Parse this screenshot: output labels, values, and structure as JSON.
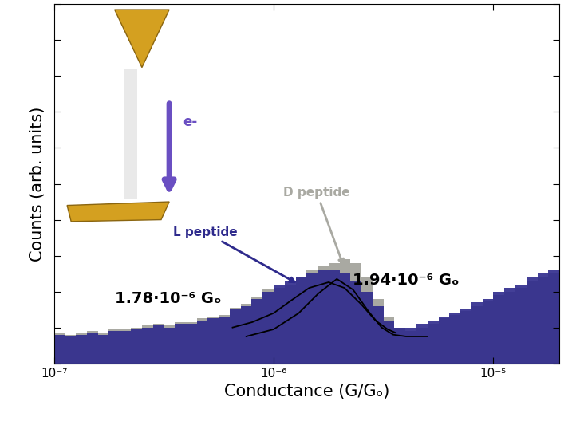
{
  "chart_data": {
    "type": "histogram",
    "x_label": "Conductance (G/Gₒ)",
    "y_label": "Counts (arb. units)",
    "log": "x",
    "xlim": [
      1e-07,
      2e-05
    ],
    "xticks": [
      {
        "value": 1e-07,
        "label": "10⁻⁷"
      },
      {
        "value": 1e-06,
        "label": "10⁻⁶"
      },
      {
        "value": 1e-05,
        "label": "10⁻⁵"
      }
    ],
    "ylim": [
      0,
      100
    ],
    "yticks": [
      0,
      10,
      20,
      30,
      40,
      50,
      60,
      70,
      80,
      90,
      100
    ],
    "tick_labels": "x",
    "bins": [
      1e-07,
      1.122e-07,
      1.259e-07,
      1.413e-07,
      1.585e-07,
      1.778e-07,
      1.995e-07,
      2.239e-07,
      2.512e-07,
      2.818e-07,
      3.162e-07,
      3.548e-07,
      3.981e-07,
      4.467e-07,
      5.012e-07,
      5.623e-07,
      6.31e-07,
      7.079e-07,
      7.943e-07,
      8.913e-07,
      1e-06,
      1.122e-06,
      1.259e-06,
      1.413e-06,
      1.585e-06,
      1.778e-06,
      1.995e-06,
      2.239e-06,
      2.512e-06,
      2.818e-06,
      3.162e-06,
      3.548e-06,
      3.981e-06,
      4.467e-06,
      5.012e-06,
      5.623e-06,
      6.31e-06,
      7.079e-06,
      7.943e-06,
      8.913e-06,
      1e-05,
      1.122e-05,
      1.259e-05,
      1.413e-05,
      1.585e-05,
      1.778e-05,
      1.995e-05
    ],
    "series": [
      {
        "name": "D peptide",
        "color": "#a9a9a2",
        "values": [
          8.5,
          8,
          8.5,
          9,
          8.5,
          9.5,
          9.5,
          10,
          10.5,
          11,
          10.5,
          11.5,
          11.5,
          12.5,
          13,
          13.5,
          15.5,
          16.5,
          18.5,
          20.5,
          21,
          22,
          24,
          26,
          27,
          28,
          29,
          28,
          24,
          18,
          13,
          10,
          9,
          10,
          11,
          12.5,
          13.5,
          14.5,
          16,
          17.5,
          19,
          20,
          21,
          23,
          24,
          25
        ]
      },
      {
        "name": "L peptide",
        "color": "#2e2a8c",
        "values": [
          8,
          7.5,
          8,
          8.5,
          8,
          9,
          9,
          9.5,
          10,
          10.5,
          10,
          11,
          11,
          12,
          12.5,
          13,
          15,
          16,
          18,
          20,
          22,
          23,
          24,
          25,
          26,
          26,
          25,
          23,
          20,
          16,
          12,
          10,
          10,
          11,
          12,
          13,
          14,
          15,
          17,
          18,
          20,
          21,
          22,
          24,
          25,
          26
        ]
      }
    ],
    "fits": [
      {
        "label": "1.78·10⁻⁶ Gₒ",
        "color": "#000000",
        "x": [
          6.5e-07,
          8e-07,
          1e-06,
          1.2e-06,
          1.45e-06,
          1.78e-06,
          2.1e-06,
          2.5e-06,
          2.9e-06,
          3.3e-06,
          3.6e-06
        ],
        "values": [
          10,
          11.5,
          14,
          17.5,
          21,
          22.6,
          21,
          16.5,
          12,
          9.5,
          8.5
        ]
      },
      {
        "label": "1.94·10⁻⁶ Gₒ",
        "color": "#000000",
        "x": [
          7.5e-07,
          1e-06,
          1.3e-06,
          1.6e-06,
          1.94e-06,
          2.3e-06,
          2.7e-06,
          3.1e-06,
          3.5e-06,
          4e-06,
          5e-06
        ],
        "values": [
          7.5,
          9.5,
          14,
          19.5,
          23.5,
          20.5,
          14.5,
          10,
          8,
          7.5,
          7.5
        ]
      }
    ],
    "annotations": [
      "e-"
    ]
  }
}
